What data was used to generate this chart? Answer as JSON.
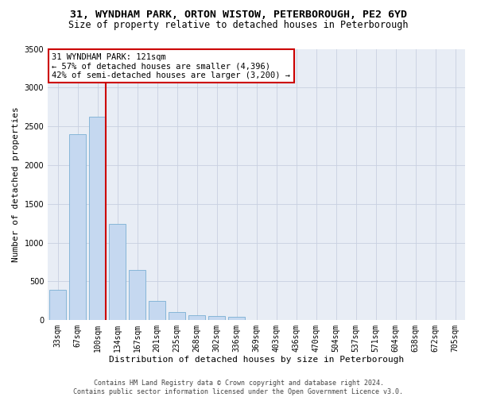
{
  "title1": "31, WYNDHAM PARK, ORTON WISTOW, PETERBOROUGH, PE2 6YD",
  "title2": "Size of property relative to detached houses in Peterborough",
  "xlabel": "Distribution of detached houses by size in Peterborough",
  "ylabel": "Number of detached properties",
  "categories": [
    "33sqm",
    "67sqm",
    "100sqm",
    "134sqm",
    "167sqm",
    "201sqm",
    "235sqm",
    "268sqm",
    "302sqm",
    "336sqm",
    "369sqm",
    "403sqm",
    "436sqm",
    "470sqm",
    "504sqm",
    "537sqm",
    "571sqm",
    "604sqm",
    "638sqm",
    "672sqm",
    "705sqm"
  ],
  "values": [
    390,
    2400,
    2620,
    1240,
    645,
    248,
    100,
    68,
    58,
    48,
    0,
    0,
    0,
    0,
    0,
    0,
    0,
    0,
    0,
    0,
    0
  ],
  "bar_color": "#c5d8f0",
  "bar_edge_color": "#7bafd4",
  "vline_x_idx": 2,
  "vline_color": "#cc0000",
  "annotation_line1": "31 WYNDHAM PARK: 121sqm",
  "annotation_line2": "← 57% of detached houses are smaller (4,396)",
  "annotation_line3": "42% of semi-detached houses are larger (3,200) →",
  "annotation_box_facecolor": "#ffffff",
  "annotation_box_edgecolor": "#cc0000",
  "ylim": [
    0,
    3500
  ],
  "yticks": [
    0,
    500,
    1000,
    1500,
    2000,
    2500,
    3000,
    3500
  ],
  "footer1": "Contains HM Land Registry data © Crown copyright and database right 2024.",
  "footer2": "Contains public sector information licensed under the Open Government Licence v3.0.",
  "bg_color": "#ffffff",
  "plot_bg_color": "#e8edf5",
  "grid_color": "#c8d0e0",
  "title1_fontsize": 9.5,
  "title2_fontsize": 8.5,
  "xlabel_fontsize": 8,
  "ylabel_fontsize": 8,
  "tick_fontsize": 7,
  "annotation_fontsize": 7.5,
  "footer_fontsize": 6
}
